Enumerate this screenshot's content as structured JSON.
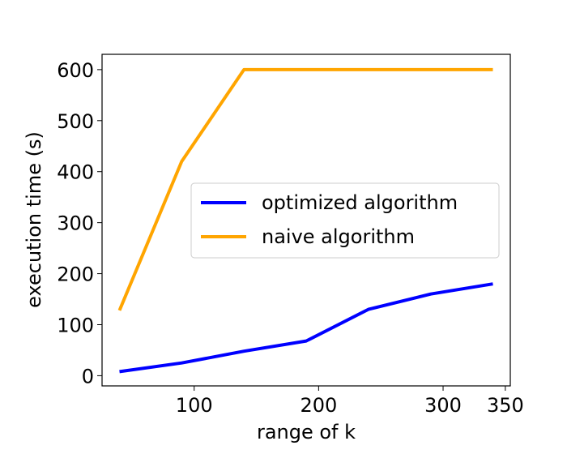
{
  "chart_data": {
    "type": "line",
    "xlabel": "range of k",
    "ylabel": "execution time (s)",
    "xlim": [
      26,
      354
    ],
    "ylim": [
      -20,
      630
    ],
    "xticks": [
      100,
      200,
      300,
      350
    ],
    "yticks": [
      0,
      100,
      200,
      300,
      400,
      500,
      600
    ],
    "grid": false,
    "legend_position": "center-right",
    "series": [
      {
        "name": "optimized algorithm",
        "color": "#0000ff",
        "x": [
          40,
          90,
          140,
          190,
          240,
          290,
          340
        ],
        "y": [
          8,
          25,
          48,
          68,
          130,
          160,
          180
        ]
      },
      {
        "name": "naive algorithm",
        "color": "#ffa500",
        "x": [
          40,
          90,
          140,
          190,
          240,
          290,
          340
        ],
        "y": [
          128,
          420,
          600,
          600,
          600,
          600,
          600
        ]
      }
    ]
  }
}
